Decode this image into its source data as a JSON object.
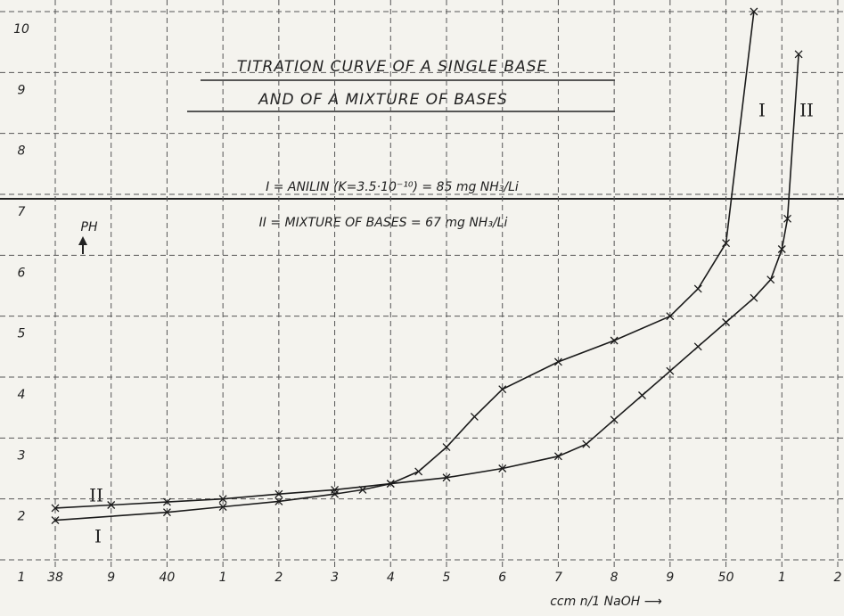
{
  "chart_data": {
    "type": "line",
    "title": "TITRATION CURVE OF A SINGLE BASE",
    "subtitle": "AND OF A MIXTURE OF BASES",
    "annotations": [
      "I = ANILIN (K=3.5·10⁻¹⁰) = 85 mg NH₃/Li",
      "II = MIXTURE OF BASES = 67 mg NH₃/Li"
    ],
    "y_label": "PH",
    "x_label": "ccm n/1 NaOH ⟶",
    "xlim": [
      38,
      52
    ],
    "ylim": [
      1,
      10
    ],
    "xticks": [
      38,
      {
        "value": 39,
        "label": "9"
      },
      40,
      {
        "value": 41,
        "label": "1"
      },
      {
        "value": 42,
        "label": "2"
      },
      {
        "value": 43,
        "label": "3"
      },
      {
        "value": 44,
        "label": "4"
      },
      {
        "value": 45,
        "label": "5"
      },
      {
        "value": 46,
        "label": "6"
      },
      {
        "value": 47,
        "label": "7"
      },
      {
        "value": 48,
        "label": "8"
      },
      {
        "value": 49,
        "label": "9"
      },
      50,
      {
        "value": 51,
        "label": "1"
      },
      {
        "value": 52,
        "label": "2"
      }
    ],
    "yticks": [
      1,
      2,
      3,
      4,
      5,
      6,
      7,
      8,
      9,
      10
    ],
    "grid": true,
    "series": [
      {
        "name": "I",
        "color": "#1a1a1a",
        "x": [
          38,
          40,
          41,
          42,
          43,
          43.5,
          44,
          44.5,
          45,
          45.5,
          46,
          47,
          48,
          49,
          49.5,
          50,
          50.5
        ],
        "values": [
          1.65,
          1.78,
          1.87,
          1.96,
          2.08,
          2.15,
          2.25,
          2.45,
          2.85,
          3.35,
          3.8,
          4.25,
          4.6,
          5.0,
          5.45,
          6.2,
          10
        ]
      },
      {
        "name": "II",
        "color": "#1a1a1a",
        "x": [
          38,
          39,
          40,
          41,
          42,
          43,
          44,
          45,
          46,
          47,
          47.5,
          48,
          48.5,
          49,
          49.5,
          50,
          50.5,
          50.8,
          51,
          51.1,
          51.3
        ],
        "values": [
          1.85,
          1.9,
          1.95,
          2.0,
          2.08,
          2.15,
          2.25,
          2.35,
          2.5,
          2.7,
          2.9,
          3.3,
          3.7,
          4.1,
          4.5,
          4.9,
          5.3,
          5.6,
          6.1,
          6.6,
          9.3
        ]
      }
    ]
  }
}
